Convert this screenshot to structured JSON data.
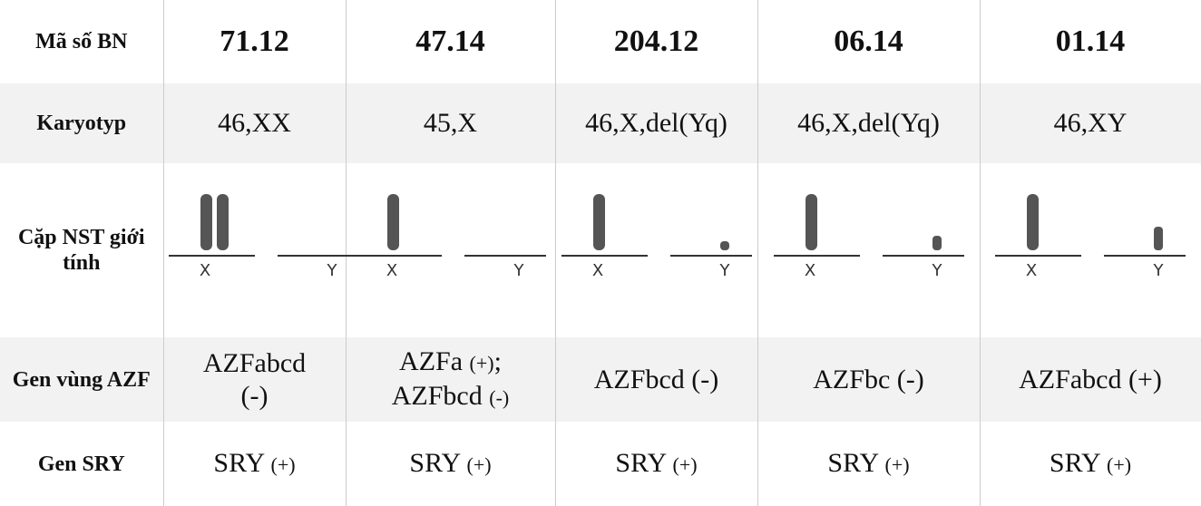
{
  "table": {
    "rows": [
      {
        "label": "Mã số BN",
        "cells": [
          [
            [
              {
                "text": "71.12"
              }
            ]
          ],
          [
            [
              {
                "text": "47.14"
              }
            ]
          ],
          [
            [
              {
                "text": "204.12"
              }
            ]
          ],
          [
            [
              {
                "text": "06.14"
              }
            ]
          ],
          [
            [
              {
                "text": "01.14"
              }
            ]
          ]
        ]
      },
      {
        "label": "Karyotyp",
        "cells": [
          [
            [
              {
                "text": "46,XX"
              }
            ]
          ],
          [
            [
              {
                "text": "45,X"
              }
            ]
          ],
          [
            [
              {
                "text": "46,X,del(Yq)"
              }
            ]
          ],
          [
            [
              {
                "text": "46,X,del(Yq)"
              }
            ]
          ],
          [
            [
              {
                "text": "46,XY"
              }
            ]
          ]
        ]
      },
      {
        "label": "Cặp NST giới tính",
        "cells": [
          {
            "x": "X",
            "y": "Y"
          },
          {
            "x": "X",
            "y": "Y"
          },
          {
            "x": "X",
            "y": "Y"
          },
          {
            "x": "X",
            "y": "Y"
          },
          {
            "x": "X",
            "y": "Y"
          }
        ]
      },
      {
        "label": "Gen vùng AZF",
        "cells": [
          [
            [
              {
                "text": "AZFabcd"
              }
            ],
            [
              {
                "text": "(-)"
              }
            ]
          ],
          [
            [
              {
                "text": "AZFa "
              },
              {
                "text": "(+)",
                "small": true
              },
              {
                "text": ";"
              }
            ],
            [
              {
                "text": "AZFbcd "
              },
              {
                "text": "(-)",
                "small": true
              }
            ]
          ],
          [
            [
              {
                "text": "AZFbcd (-)"
              }
            ]
          ],
          [
            [
              {
                "text": "AZFbc (-)"
              }
            ]
          ],
          [
            [
              {
                "text": "AZFabcd (+)"
              }
            ]
          ]
        ]
      },
      {
        "label": "Gen SRY",
        "cells": [
          [
            [
              {
                "text": "SRY "
              },
              {
                "text": "(+)",
                "small": true
              }
            ]
          ],
          [
            [
              {
                "text": "SRY "
              },
              {
                "text": "(+)",
                "small": true
              }
            ]
          ],
          [
            [
              {
                "text": "SRY "
              },
              {
                "text": "(+)",
                "small": true
              }
            ]
          ],
          [
            [
              {
                "text": "SRY "
              },
              {
                "text": "(+)",
                "small": true
              }
            ]
          ],
          [
            [
              {
                "text": "SRY "
              },
              {
                "text": "(+)",
                "small": true
              }
            ]
          ]
        ]
      }
    ]
  }
}
